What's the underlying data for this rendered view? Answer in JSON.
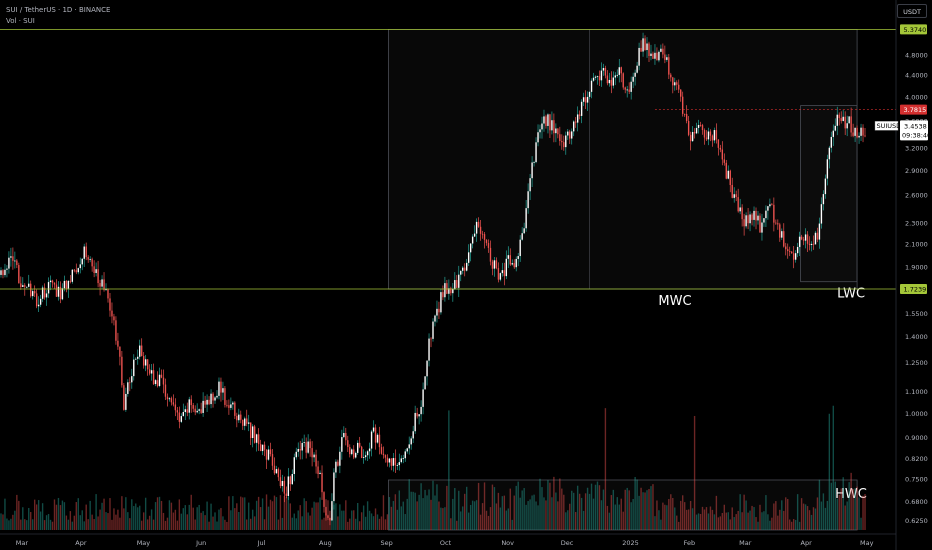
{
  "header": {
    "symbol_line": "SUI / TetherUS · 1D · BINANCE",
    "volume_line": "Vol · SUI"
  },
  "currency_button": "USDT",
  "colors": {
    "background": "#000000",
    "up": "#26a69a",
    "down": "#ef5350",
    "level_line": "#a4c639",
    "red_tag": "#d32f2f",
    "grid_text": "#b2b5be",
    "box_line": "#4a4d55"
  },
  "chart_data": {
    "type": "candlestick",
    "symbol": "SUIUSDT",
    "interval": "1D",
    "exchange": "BINANCE",
    "y_scale": "log",
    "ylim": [
      0.6,
      5.6
    ],
    "y_ticks": [
      5.374,
      4.8,
      4.4,
      4.0,
      3.6,
      3.2,
      2.9,
      2.6,
      2.3,
      2.1,
      1.9,
      1.723,
      1.55,
      1.4,
      1.25,
      1.1,
      1.0,
      0.9,
      0.82,
      0.75,
      0.68,
      0.625
    ],
    "y_tick_labels": [
      "5.3740",
      "4.8000",
      "4.4000",
      "4.0000",
      "3.6000",
      "3.2000",
      "2.9000",
      "2.6000",
      "2.3000",
      "2.1000",
      "1.9000",
      "1.7239",
      "1.5500",
      "1.4000",
      "1.2500",
      "1.1000",
      "1.0000",
      "0.9000",
      "0.8200",
      "0.7500",
      "0.6800",
      "0.6250"
    ],
    "x_labels": [
      "Mar",
      "Apr",
      "May",
      "Jun",
      "Jul",
      "Aug",
      "Sep",
      "Oct",
      "Nov",
      "Dec",
      "2025",
      "Feb",
      "Mar",
      "Apr",
      "May"
    ],
    "x_label_days": [
      10,
      40,
      71,
      101,
      132,
      163,
      194,
      224,
      255,
      285,
      316,
      347,
      375,
      406,
      436
    ],
    "price_path": [
      [
        0,
        1.85
      ],
      [
        5,
        1.95
      ],
      [
        10,
        1.8
      ],
      [
        18,
        1.62
      ],
      [
        24,
        1.75
      ],
      [
        30,
        1.7
      ],
      [
        36,
        1.85
      ],
      [
        42,
        2.05
      ],
      [
        46,
        1.92
      ],
      [
        52,
        1.72
      ],
      [
        56,
        1.55
      ],
      [
        60,
        1.25
      ],
      [
        62,
        1.05
      ],
      [
        66,
        1.2
      ],
      [
        70,
        1.35
      ],
      [
        74,
        1.2
      ],
      [
        80,
        1.15
      ],
      [
        86,
        1.05
      ],
      [
        90,
        0.95
      ],
      [
        96,
        1.05
      ],
      [
        100,
        1.0
      ],
      [
        106,
        1.08
      ],
      [
        110,
        1.12
      ],
      [
        114,
        1.05
      ],
      [
        118,
        1.0
      ],
      [
        124,
        0.95
      ],
      [
        130,
        0.88
      ],
      [
        136,
        0.82
      ],
      [
        140,
        0.75
      ],
      [
        144,
        0.72
      ],
      [
        148,
        0.8
      ],
      [
        152,
        0.88
      ],
      [
        156,
        0.85
      ],
      [
        160,
        0.78
      ],
      [
        163,
        0.68
      ],
      [
        166,
        0.62
      ],
      [
        168,
        0.75
      ],
      [
        172,
        0.9
      ],
      [
        176,
        0.85
      ],
      [
        180,
        0.85
      ],
      [
        184,
        0.82
      ],
      [
        188,
        0.92
      ],
      [
        192,
        0.85
      ],
      [
        196,
        0.8
      ],
      [
        200,
        0.82
      ],
      [
        204,
        0.85
      ],
      [
        208,
        0.95
      ],
      [
        212,
        1.05
      ],
      [
        216,
        1.35
      ],
      [
        220,
        1.55
      ],
      [
        224,
        1.75
      ],
      [
        228,
        1.7
      ],
      [
        232,
        1.85
      ],
      [
        236,
        2.0
      ],
      [
        240,
        2.25
      ],
      [
        244,
        2.2
      ],
      [
        248,
        1.95
      ],
      [
        252,
        1.8
      ],
      [
        256,
        1.95
      ],
      [
        260,
        1.9
      ],
      [
        264,
        2.3
      ],
      [
        268,
        2.9
      ],
      [
        272,
        3.5
      ],
      [
        276,
        3.6
      ],
      [
        280,
        3.4
      ],
      [
        284,
        3.25
      ],
      [
        288,
        3.5
      ],
      [
        292,
        3.7
      ],
      [
        296,
        4.1
      ],
      [
        300,
        4.4
      ],
      [
        304,
        4.45
      ],
      [
        308,
        4.2
      ],
      [
        312,
        4.5
      ],
      [
        316,
        4.0
      ],
      [
        320,
        4.6
      ],
      [
        324,
        5.1
      ],
      [
        328,
        4.7
      ],
      [
        332,
        4.85
      ],
      [
        336,
        4.6
      ],
      [
        340,
        4.25
      ],
      [
        344,
        3.8
      ],
      [
        348,
        3.3
      ],
      [
        352,
        3.5
      ],
      [
        356,
        3.35
      ],
      [
        360,
        3.4
      ],
      [
        364,
        3.1
      ],
      [
        368,
        2.7
      ],
      [
        372,
        2.45
      ],
      [
        376,
        2.3
      ],
      [
        380,
        2.35
      ],
      [
        384,
        2.25
      ],
      [
        388,
        2.5
      ],
      [
        392,
        2.25
      ],
      [
        396,
        2.05
      ],
      [
        400,
        2.0
      ],
      [
        404,
        2.15
      ],
      [
        408,
        2.1
      ],
      [
        412,
        2.2
      ],
      [
        416,
        2.8
      ],
      [
        420,
        3.5
      ],
      [
        424,
        3.65
      ],
      [
        428,
        3.55
      ],
      [
        430,
        3.45
      ]
    ],
    "levels": [
      {
        "label": "5.3740",
        "price": 5.374,
        "color": "#a4c639"
      },
      {
        "label": "1.7239",
        "price": 1.7239,
        "color": "#a4c639"
      }
    ],
    "last_price": {
      "symbol": "SUIUSDT",
      "price": "3.4538",
      "countdown": "09:38:40"
    },
    "high_marker": {
      "price": "3.7815",
      "value": 3.7815
    },
    "zones": [
      {
        "label": "MWC",
        "start_day": 196,
        "end_day": 432,
        "low": 1.7239,
        "high": 5.374
      },
      {
        "label": "LWC",
        "start_day": 404,
        "end_day": 432,
        "low": 1.78,
        "high": 3.85
      }
    ],
    "volume_zone": {
      "label": "HWC",
      "start_day": 196,
      "end_day": 432
    }
  }
}
